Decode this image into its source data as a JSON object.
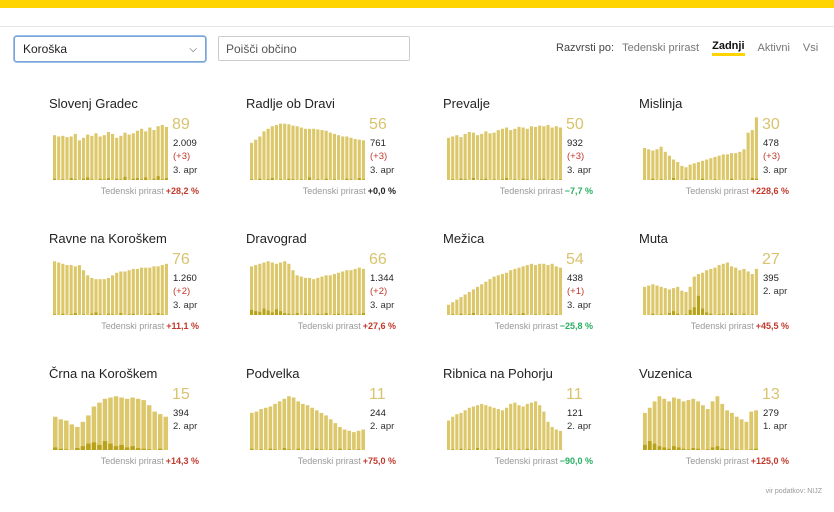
{
  "filters": {
    "region": "Koroška",
    "search_placeholder": "Poišči občino"
  },
  "sort": {
    "label": "Razvrsti po:",
    "options": [
      "Tedenski prirast",
      "Zadnji",
      "Aktivni",
      "Vsi"
    ],
    "active": 1
  },
  "growth_label": "Tedenski prirast",
  "source": "vir podatkov: NIJZ",
  "colors": {
    "bar": "#dcc86a",
    "bar_dark": "#b8a21a",
    "up": "#c0392b",
    "down": "#27ae60",
    "accent": "#ffd400"
  },
  "chart_data": [
    {
      "type": "bar",
      "title": "Slovenj Gradec",
      "active": "89",
      "total": "2.009",
      "delta": "(+3)",
      "date": "3. apr",
      "growth": "+28,2 %",
      "trend": "up",
      "values": [
        70,
        68,
        69,
        67,
        68,
        72,
        62,
        66,
        71,
        69,
        73,
        68,
        70,
        75,
        72,
        66,
        69,
        74,
        71,
        73,
        77,
        80,
        76,
        82,
        78,
        84,
        86,
        83
      ],
      "daily": [
        2,
        0,
        1,
        0,
        3,
        1,
        0,
        2,
        4,
        1,
        0,
        2,
        1,
        3,
        0,
        2,
        1,
        5,
        0,
        2,
        3,
        1,
        4,
        0,
        2,
        6,
        1,
        3
      ]
    },
    {
      "type": "bar",
      "title": "Radlje ob Dravi",
      "active": "56",
      "total": "761",
      "delta": "(+3)",
      "date": "3. apr",
      "growth": "+0,0 %",
      "trend": "zero",
      "values": [
        58,
        63,
        68,
        76,
        80,
        84,
        86,
        88,
        88,
        87,
        85,
        84,
        82,
        80,
        80,
        80,
        79,
        78,
        77,
        74,
        72,
        70,
        68,
        68,
        66,
        64,
        63,
        62
      ],
      "daily": [
        1,
        0,
        2,
        0,
        1,
        3,
        0,
        1,
        0,
        2,
        1,
        0,
        1,
        0,
        4,
        0,
        1,
        0,
        2,
        0,
        1,
        0,
        0,
        2,
        1,
        0,
        3,
        1
      ]
    },
    {
      "type": "bar",
      "title": "Prevalje",
      "active": "50",
      "total": "932",
      "delta": "(+3)",
      "date": "3. apr",
      "growth": "−7,7 %",
      "trend": "down",
      "values": [
        66,
        68,
        70,
        67,
        72,
        75,
        74,
        70,
        72,
        76,
        73,
        74,
        78,
        80,
        82,
        78,
        80,
        83,
        82,
        80,
        84,
        83,
        85,
        84,
        86,
        82,
        84,
        82
      ],
      "daily": [
        0,
        1,
        0,
        2,
        1,
        0,
        3,
        0,
        1,
        2,
        0,
        1,
        0,
        1,
        3,
        0,
        1,
        0,
        2,
        1,
        0,
        0,
        1,
        2,
        0,
        1,
        0,
        1
      ]
    },
    {
      "type": "bar",
      "title": "Mislinja",
      "active": "30",
      "total": "478",
      "delta": "(+3)",
      "date": "3. apr",
      "growth": "+228,6 %",
      "trend": "up",
      "values": [
        50,
        48,
        46,
        48,
        52,
        44,
        38,
        32,
        28,
        22,
        20,
        24,
        26,
        28,
        30,
        32,
        34,
        36,
        38,
        40,
        40,
        42,
        42,
        44,
        48,
        74,
        78,
        98
      ],
      "daily": [
        0,
        0,
        2,
        0,
        1,
        0,
        0,
        3,
        0,
        0,
        1,
        0,
        0,
        0,
        2,
        0,
        0,
        1,
        0,
        0,
        0,
        2,
        0,
        0,
        1,
        0,
        3,
        2
      ]
    },
    {
      "type": "bar",
      "title": "Ravne na Koroškem",
      "active": "76",
      "total": "1.260",
      "delta": "(+2)",
      "date": "3. apr",
      "growth": "+11,1 %",
      "trend": "up",
      "values": [
        84,
        82,
        80,
        78,
        78,
        76,
        78,
        70,
        62,
        58,
        56,
        56,
        56,
        58,
        62,
        66,
        68,
        68,
        70,
        72,
        72,
        74,
        74,
        74,
        76,
        76,
        78,
        80
      ],
      "daily": [
        1,
        0,
        2,
        0,
        1,
        3,
        0,
        1,
        0,
        2,
        4,
        1,
        0,
        2,
        1,
        0,
        3,
        0,
        1,
        2,
        0,
        0,
        1,
        2,
        0,
        3,
        1,
        0
      ]
    },
    {
      "type": "bar",
      "title": "Dravograd",
      "active": "66",
      "total": "1.344",
      "delta": "(+2)",
      "date": "3. apr",
      "growth": "+27,6 %",
      "trend": "up",
      "values": [
        76,
        78,
        80,
        82,
        84,
        82,
        80,
        82,
        84,
        80,
        70,
        62,
        60,
        58,
        58,
        56,
        58,
        60,
        62,
        62,
        64,
        66,
        68,
        70,
        70,
        72,
        74,
        72
      ],
      "daily": [
        8,
        6,
        5,
        10,
        7,
        4,
        9,
        6,
        3,
        2,
        1,
        3,
        0,
        2,
        1,
        0,
        2,
        1,
        3,
        0,
        1,
        2,
        0,
        1,
        2,
        0,
        1,
        3
      ]
    },
    {
      "type": "bar",
      "title": "Mežica",
      "active": "54",
      "total": "438",
      "delta": "(+1)",
      "date": "3. apr",
      "growth": "−25,8 %",
      "trend": "down",
      "values": [
        16,
        20,
        24,
        28,
        32,
        36,
        40,
        44,
        48,
        52,
        56,
        60,
        62,
        64,
        66,
        70,
        72,
        74,
        76,
        78,
        80,
        78,
        80,
        80,
        78,
        80,
        76,
        74
      ],
      "daily": [
        0,
        1,
        0,
        2,
        0,
        1,
        3,
        0,
        1,
        0,
        2,
        0,
        1,
        0,
        0,
        2,
        0,
        1,
        3,
        0,
        0,
        1,
        0,
        0,
        2,
        0,
        1,
        0
      ]
    },
    {
      "type": "bar",
      "title": "Muta",
      "active": "27",
      "total": "395",
      "delta": "",
      "date": "2. apr",
      "growth": "+45,5 %",
      "trend": "up",
      "values": [
        44,
        46,
        48,
        46,
        44,
        42,
        40,
        42,
        44,
        38,
        36,
        44,
        60,
        64,
        66,
        70,
        72,
        74,
        78,
        80,
        82,
        76,
        74,
        70,
        72,
        68,
        64,
        72
      ],
      "daily": [
        0,
        0,
        2,
        0,
        1,
        0,
        3,
        6,
        2,
        0,
        1,
        8,
        12,
        30,
        10,
        4,
        2,
        0,
        1,
        2,
        0,
        3,
        1,
        0,
        2,
        0,
        1,
        0
      ]
    },
    {
      "type": "bar",
      "title": "Črna na Koroškem",
      "active": "15",
      "total": "394",
      "delta": "",
      "date": "2. apr",
      "growth": "+14,3 %",
      "trend": "up",
      "values": [
        52,
        48,
        46,
        40,
        36,
        44,
        54,
        68,
        74,
        80,
        82,
        84,
        82,
        80,
        82,
        80,
        78,
        70,
        60,
        56,
        52
      ],
      "daily": [
        4,
        2,
        1,
        0,
        3,
        6,
        10,
        12,
        8,
        14,
        10,
        6,
        8,
        4,
        6,
        3,
        2,
        1,
        0,
        2,
        0
      ]
    },
    {
      "type": "bar",
      "title": "Podvelka",
      "active": "11",
      "total": "244",
      "delta": "",
      "date": "2. apr",
      "growth": "+75,0 %",
      "trend": "up",
      "values": [
        58,
        60,
        64,
        66,
        68,
        72,
        76,
        80,
        84,
        82,
        76,
        72,
        70,
        66,
        62,
        58,
        54,
        48,
        42,
        36,
        32,
        30,
        28,
        30,
        32
      ],
      "daily": [
        2,
        0,
        1,
        0,
        2,
        1,
        0,
        3,
        1,
        0,
        2,
        0,
        1,
        0,
        2,
        1,
        0,
        1,
        0,
        2,
        0,
        1,
        0,
        1,
        0
      ]
    },
    {
      "type": "bar",
      "title": "Ribnica na Pohorju",
      "active": "11",
      "total": "121",
      "delta": "",
      "date": "2. apr",
      "growth": "−90,0 %",
      "trend": "down",
      "values": [
        46,
        52,
        56,
        58,
        62,
        66,
        68,
        70,
        72,
        70,
        68,
        66,
        64,
        62,
        66,
        72,
        74,
        70,
        68,
        72,
        74,
        76,
        70,
        60,
        44,
        36,
        32,
        30
      ],
      "daily": [
        0,
        1,
        0,
        2,
        0,
        1,
        0,
        3,
        0,
        1,
        0,
        0,
        2,
        0,
        1,
        0,
        0,
        1,
        0,
        2,
        0,
        1,
        0,
        0,
        1,
        0,
        0,
        0
      ]
    },
    {
      "type": "bar",
      "title": "Vuzenica",
      "active": "13",
      "total": "279",
      "delta": "",
      "date": "1. apr",
      "growth": "+125,0 %",
      "trend": "up",
      "values": [
        58,
        66,
        76,
        84,
        80,
        76,
        82,
        80,
        76,
        78,
        80,
        76,
        70,
        64,
        76,
        84,
        72,
        62,
        58,
        52,
        48,
        44,
        60,
        62
      ],
      "daily": [
        8,
        14,
        10,
        6,
        4,
        2,
        6,
        4,
        2,
        1,
        3,
        2,
        0,
        1,
        4,
        6,
        2,
        1,
        0,
        1,
        0,
        0,
        1,
        2
      ]
    }
  ]
}
